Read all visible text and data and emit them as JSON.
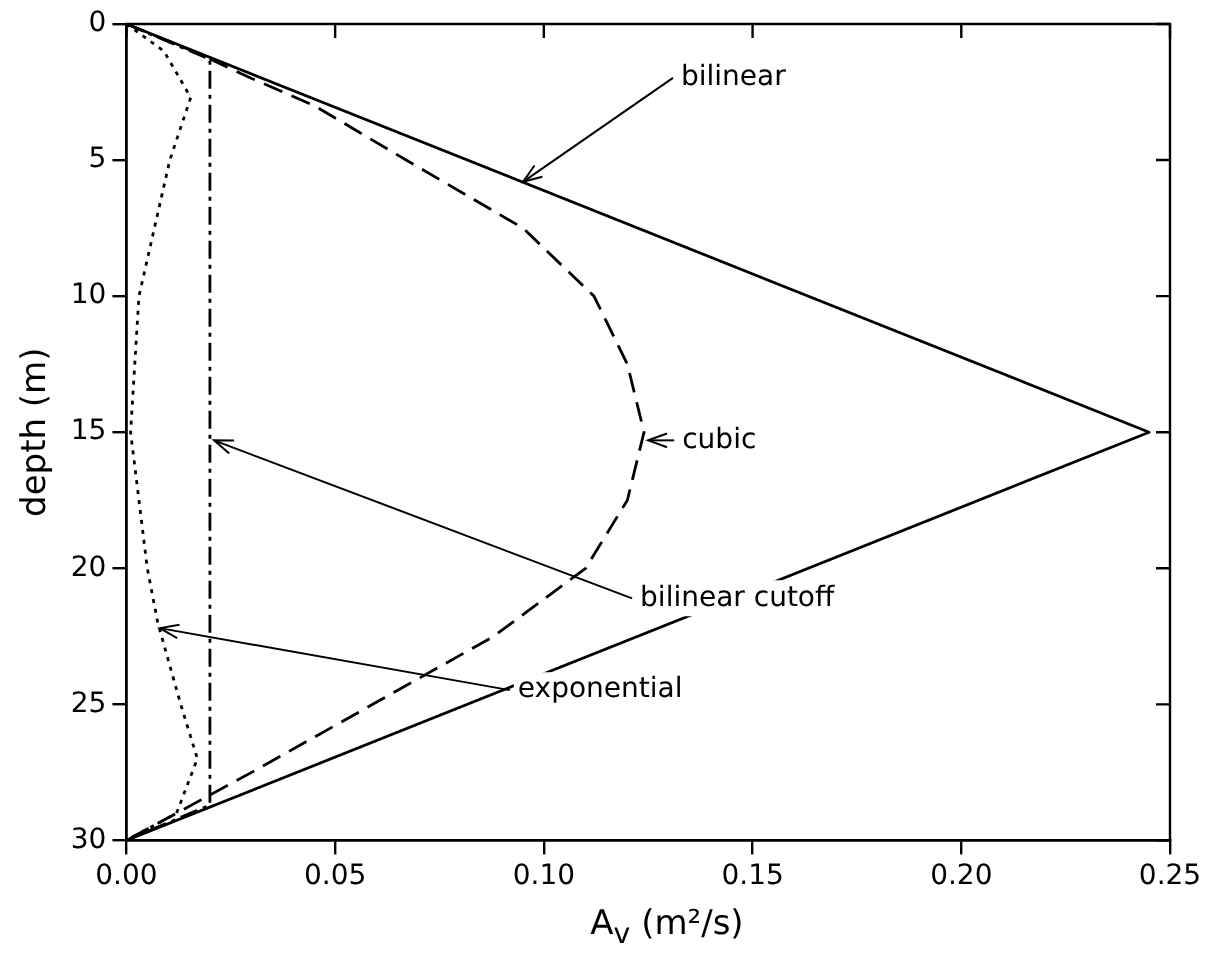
{
  "chart_data": {
    "type": "line",
    "xlabel": "A$_{v}$ (m²/s)",
    "ylabel": "depth (m)",
    "xlim": [
      0,
      0.25
    ],
    "xticks": [
      {
        "value": 0,
        "label": "0.00"
      },
      {
        "value": 0.05,
        "label": "0.05"
      },
      {
        "value": 0.1,
        "label": "0.10"
      },
      {
        "value": 0.15,
        "label": "0.15"
      },
      {
        "value": 0.2,
        "label": "0.20"
      },
      {
        "value": 0.25,
        "label": "0.25"
      }
    ],
    "ylim": [
      30,
      0
    ],
    "yticks": [
      0,
      5,
      10,
      15,
      20,
      25,
      30
    ],
    "grid": false,
    "legend": false,
    "marker": "none",
    "series": [
      {
        "color": "#000000",
        "line_style": "solid",
        "x": [
          0,
          0.245,
          0
        ],
        "values": [
          0,
          15,
          30
        ]
      },
      {
        "color": "#000000",
        "line_style": "dashed",
        "x": [
          0,
          0.016,
          0.03,
          0.045,
          0.067,
          0.095,
          0.112,
          0.12,
          0.124,
          0.12,
          0.11,
          0.088,
          0.059,
          0.03,
          0
        ],
        "values": [
          0,
          1,
          2,
          3,
          5,
          7.5,
          10,
          12.5,
          15,
          17.5,
          20,
          22.5,
          25,
          27.5,
          30
        ]
      },
      {
        "color": "#000000",
        "line_style": "dashdot",
        "x": [
          0,
          0.02,
          0.02,
          0
        ],
        "values": [
          0,
          1.3,
          28.7,
          30
        ]
      },
      {
        "color": "#000000",
        "line_style": "dotted",
        "x": [
          0,
          0.009,
          0.0154,
          0.0104,
          0.003,
          0.001,
          0.005,
          0.0075,
          0.013,
          0.017,
          0.012,
          0
        ],
        "values": [
          0,
          1,
          2.7,
          5,
          10,
          15,
          20,
          22,
          25,
          27,
          29,
          30
        ]
      }
    ],
    "annotations": [
      {
        "text": "bilinear",
        "x": 0.095,
        "y": 5.8
      },
      {
        "text": "cubic",
        "x": 0.125,
        "y": 15.3
      },
      {
        "text": "bilinear cutoff",
        "x": 0.021,
        "y": 15.3
      },
      {
        "text": "exponential",
        "x": 0.008,
        "y": 22.2
      }
    ]
  }
}
